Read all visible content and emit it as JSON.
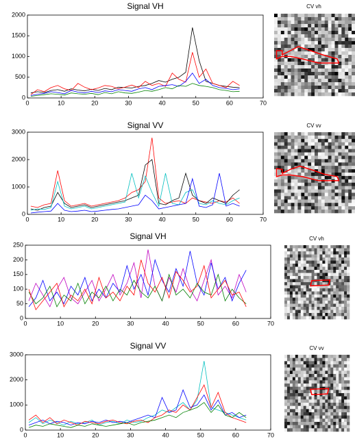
{
  "chart_data": [
    {
      "type": "line",
      "title": "Signal VH",
      "inset_title": "CV vh",
      "x": [
        1,
        3,
        5,
        7,
        9,
        11,
        13,
        15,
        17,
        19,
        21,
        23,
        25,
        27,
        29,
        31,
        33,
        35,
        37,
        39,
        41,
        43,
        45,
        47,
        49,
        51,
        53,
        55,
        57,
        59,
        61,
        63
      ],
      "xlim": [
        0,
        70
      ],
      "xticks": [
        0,
        10,
        20,
        30,
        40,
        50,
        60,
        70
      ],
      "ylim": [
        0,
        2000
      ],
      "yticks": [
        0,
        500,
        1000,
        1500,
        2000
      ],
      "series": [
        {
          "color": "#000000",
          "values": [
            120,
            150,
            130,
            180,
            200,
            160,
            220,
            190,
            170,
            210,
            180,
            230,
            200,
            260,
            250,
            240,
            280,
            300,
            350,
            420,
            380,
            450,
            500,
            620,
            1700,
            900,
            400,
            350,
            300,
            280,
            260,
            250
          ]
        },
        {
          "color": "#ff0000",
          "values": [
            80,
            200,
            150,
            250,
            300,
            220,
            180,
            350,
            260,
            200,
            240,
            300,
            280,
            220,
            260,
            310,
            250,
            400,
            300,
            350,
            280,
            600,
            450,
            380,
            1100,
            500,
            700,
            350,
            300,
            250,
            400,
            300
          ]
        },
        {
          "color": "#0000ff",
          "values": [
            60,
            90,
            110,
            150,
            130,
            100,
            180,
            140,
            120,
            160,
            130,
            170,
            150,
            200,
            180,
            160,
            220,
            250,
            200,
            280,
            300,
            320,
            280,
            400,
            600,
            350,
            450,
            300,
            250,
            230,
            200,
            220
          ]
        },
        {
          "color": "#008000",
          "values": [
            40,
            60,
            80,
            100,
            90,
            70,
            120,
            100,
            90,
            110,
            80,
            130,
            100,
            150,
            120,
            110,
            140,
            180,
            160,
            200,
            250,
            220,
            300,
            280,
            350,
            300,
            280,
            250,
            200,
            180,
            150,
            160
          ]
        }
      ]
    },
    {
      "type": "line",
      "title": "Signal VV",
      "inset_title": "CV vv",
      "x": [
        1,
        3,
        5,
        7,
        9,
        11,
        13,
        15,
        17,
        19,
        21,
        23,
        25,
        27,
        29,
        31,
        33,
        35,
        37,
        39,
        41,
        43,
        45,
        47,
        49,
        51,
        53,
        55,
        57,
        59,
        61,
        63
      ],
      "xlim": [
        0,
        70
      ],
      "xticks": [
        0,
        10,
        20,
        30,
        40,
        50,
        60,
        70
      ],
      "ylim": [
        0,
        3000
      ],
      "yticks": [
        0,
        1000,
        2000,
        3000
      ],
      "series": [
        {
          "color": "#ff0000",
          "values": [
            300,
            250,
            350,
            400,
            1600,
            500,
            300,
            350,
            400,
            300,
            350,
            400,
            450,
            500,
            600,
            800,
            900,
            1200,
            2800,
            600,
            400,
            450,
            500,
            400,
            600,
            500,
            450,
            400,
            500,
            450,
            600,
            400
          ]
        },
        {
          "color": "#000000",
          "values": [
            200,
            150,
            250,
            300,
            800,
            400,
            250,
            300,
            350,
            250,
            300,
            350,
            400,
            450,
            500,
            600,
            700,
            1800,
            2000,
            400,
            350,
            500,
            600,
            1500,
            700,
            500,
            400,
            600,
            500,
            400,
            700,
            900
          ]
        },
        {
          "color": "#00bfbf",
          "values": [
            150,
            200,
            180,
            250,
            1200,
            300,
            200,
            250,
            300,
            200,
            250,
            300,
            350,
            400,
            450,
            1500,
            600,
            1400,
            800,
            300,
            1500,
            400,
            350,
            800,
            900,
            400,
            350,
            500,
            400,
            350,
            500,
            600
          ]
        },
        {
          "color": "#0000ff",
          "values": [
            50,
            80,
            100,
            120,
            400,
            150,
            100,
            120,
            150,
            100,
            120,
            150,
            180,
            200,
            250,
            300,
            350,
            700,
            500,
            200,
            250,
            300,
            350,
            400,
            1300,
            300,
            250,
            350,
            1500,
            300,
            400,
            300
          ]
        }
      ]
    },
    {
      "type": "line",
      "title": "Signal VH",
      "inset_title": "CV vh",
      "x": [
        1,
        3,
        5,
        7,
        9,
        11,
        13,
        15,
        17,
        19,
        21,
        23,
        25,
        27,
        29,
        31,
        33,
        35,
        37,
        39,
        41,
        43,
        45,
        47,
        49,
        51,
        53,
        55,
        57,
        59,
        61,
        63
      ],
      "xlim": [
        0,
        70
      ],
      "xticks": [
        0,
        10,
        20,
        30,
        40,
        50,
        60,
        70
      ],
      "ylim": [
        0,
        250
      ],
      "yticks": [
        0,
        50,
        100,
        150,
        200,
        250
      ],
      "series": [
        {
          "color": "#bf00bf",
          "values": [
            60,
            120,
            80,
            40,
            100,
            140,
            70,
            50,
            90,
            130,
            60,
            100,
            150,
            80,
            120,
            190,
            70,
            235,
            110,
            60,
            140,
            90,
            170,
            100,
            60,
            130,
            200,
            80,
            110,
            70,
            150,
            90
          ]
        },
        {
          "color": "#0000ff",
          "values": [
            40,
            70,
            130,
            60,
            90,
            50,
            110,
            80,
            140,
            60,
            100,
            70,
            120,
            90,
            180,
            100,
            150,
            80,
            200,
            130,
            90,
            170,
            110,
            230,
            120,
            80,
            190,
            100,
            140,
            60,
            120,
            165
          ]
        },
        {
          "color": "#008000",
          "values": [
            90,
            50,
            70,
            110,
            40,
            80,
            60,
            120,
            50,
            90,
            70,
            110,
            60,
            100,
            80,
            130,
            90,
            70,
            110,
            60,
            150,
            80,
            100,
            70,
            120,
            90,
            80,
            150,
            60,
            100,
            70,
            50
          ]
        },
        {
          "color": "#ff0000",
          "values": [
            100,
            30,
            60,
            90,
            120,
            40,
            80,
            60,
            100,
            50,
            140,
            70,
            90,
            60,
            110,
            80,
            200,
            120,
            90,
            140,
            70,
            160,
            130,
            90,
            110,
            180,
            70,
            100,
            130,
            80,
            90,
            40
          ]
        }
      ]
    },
    {
      "type": "line",
      "title": "Signal VV",
      "inset_title": "CV vv",
      "x": [
        1,
        3,
        5,
        7,
        9,
        11,
        13,
        15,
        17,
        19,
        21,
        23,
        25,
        27,
        29,
        31,
        33,
        35,
        37,
        39,
        41,
        43,
        45,
        47,
        49,
        51,
        53,
        55,
        57,
        59,
        61,
        63
      ],
      "xlim": [
        0,
        70
      ],
      "xticks": [
        0,
        10,
        20,
        30,
        40,
        50,
        60,
        70
      ],
      "ylim": [
        0,
        3000
      ],
      "yticks": [
        0,
        1000,
        2000,
        3000
      ],
      "series": [
        {
          "color": "#00bfbf",
          "values": [
            300,
            500,
            250,
            400,
            300,
            200,
            350,
            250,
            300,
            400,
            200,
            300,
            350,
            250,
            400,
            300,
            350,
            500,
            600,
            800,
            700,
            900,
            1100,
            800,
            1200,
            2750,
            900,
            800,
            700,
            600,
            500,
            400
          ]
        },
        {
          "color": "#0000ff",
          "values": [
            200,
            300,
            400,
            250,
            350,
            300,
            200,
            300,
            250,
            350,
            300,
            400,
            300,
            350,
            300,
            400,
            500,
            600,
            500,
            1300,
            700,
            800,
            1600,
            900,
            1000,
            1400,
            800,
            1200,
            600,
            700,
            500,
            600
          ]
        },
        {
          "color": "#ff0000",
          "values": [
            400,
            600,
            300,
            500,
            250,
            400,
            300,
            200,
            350,
            300,
            250,
            350,
            400,
            300,
            250,
            350,
            400,
            300,
            500,
            600,
            800,
            700,
            1000,
            800,
            1300,
            1800,
            900,
            1500,
            700,
            500,
            400,
            300
          ]
        },
        {
          "color": "#008000",
          "values": [
            100,
            200,
            150,
            250,
            200,
            150,
            100,
            200,
            150,
            250,
            200,
            150,
            200,
            250,
            300,
            200,
            300,
            350,
            400,
            500,
            600,
            500,
            700,
            800,
            900,
            1100,
            700,
            1000,
            600,
            500,
            700,
            500
          ]
        }
      ]
    }
  ]
}
